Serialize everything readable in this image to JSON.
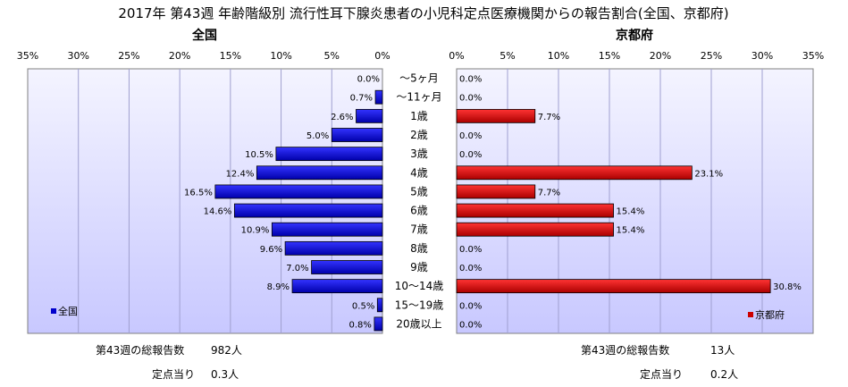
{
  "title": "2017年 第43週 年齢階級別 流行性耳下腺炎患者の小児科定点医療機関からの報告割合(全国、京都府)",
  "chart_data": [
    {
      "type": "bar",
      "orientation": "horizontal",
      "direction": "reversed",
      "title": "全国",
      "categories": [
        "～5ヶ月",
        "～11ヶ月",
        "1歳",
        "2歳",
        "3歳",
        "4歳",
        "5歳",
        "6歳",
        "7歳",
        "8歳",
        "9歳",
        "10～14歳",
        "15～19歳",
        "20歳以上"
      ],
      "series": [
        {
          "name": "全国",
          "color": "#0000cc",
          "values": [
            0.0,
            0.7,
            2.6,
            5.0,
            10.5,
            12.4,
            16.5,
            14.6,
            10.9,
            9.6,
            7.0,
            8.9,
            0.5,
            0.8
          ],
          "labels": [
            "0.0%",
            "0.7%",
            "2.6%",
            "5.0%",
            "10.5%",
            "12.4%",
            "16.5%",
            "14.6%",
            "10.9%",
            "9.6%",
            "7.0%",
            "8.9%",
            "0.5%",
            "0.8%"
          ]
        }
      ],
      "xlim": [
        0,
        35
      ],
      "ticks": [
        "35%",
        "30%",
        "25%",
        "20%",
        "15%",
        "10%",
        "5%",
        "0%"
      ],
      "grid": true,
      "legend": "bottom-left"
    },
    {
      "type": "bar",
      "orientation": "horizontal",
      "title": "京都府",
      "categories": [
        "～5ヶ月",
        "～11ヶ月",
        "1歳",
        "2歳",
        "3歳",
        "4歳",
        "5歳",
        "6歳",
        "7歳",
        "8歳",
        "9歳",
        "10～14歳",
        "15～19歳",
        "20歳以上"
      ],
      "series": [
        {
          "name": "京都府",
          "color": "#cc0000",
          "values": [
            0.0,
            0.0,
            7.7,
            0.0,
            0.0,
            23.1,
            7.7,
            15.4,
            15.4,
            0.0,
            0.0,
            30.8,
            0.0,
            0.0
          ],
          "labels": [
            "0.0%",
            "0.0%",
            "7.7%",
            "0.0%",
            "0.0%",
            "23.1%",
            "7.7%",
            "15.4%",
            "15.4%",
            "0.0%",
            "0.0%",
            "30.8%",
            "0.0%",
            "0.0%"
          ]
        }
      ],
      "xlim": [
        0,
        35
      ],
      "ticks": [
        "0%",
        "5%",
        "10%",
        "15%",
        "20%",
        "25%",
        "30%",
        "35%"
      ],
      "grid": true,
      "legend": "bottom-right"
    }
  ],
  "footer": {
    "left": {
      "total_label": "第43週の総報告数",
      "total_value": "982人",
      "per_label": "定点当り",
      "per_value": "0.3人"
    },
    "right": {
      "total_label": "第43週の総報告数",
      "total_value": "13人",
      "per_label": "定点当り",
      "per_value": "0.2人"
    }
  },
  "colors": {
    "plot_top": "#ffffff",
    "plot_bottom": "#ccccff",
    "grid": "#9999cc"
  }
}
